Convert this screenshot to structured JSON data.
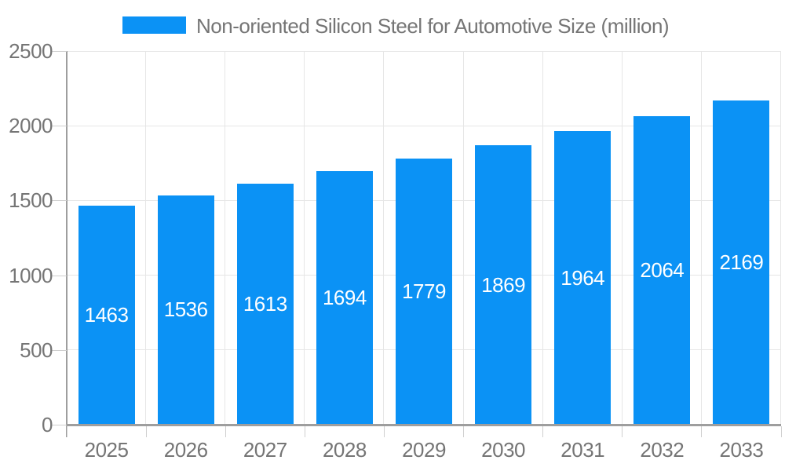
{
  "chart_data": {
    "type": "bar",
    "title": "Non-oriented Silicon Steel for Automotive Size (million)",
    "legend_position": "top",
    "categories": [
      "2025",
      "2026",
      "2027",
      "2028",
      "2029",
      "2030",
      "2031",
      "2032",
      "2033"
    ],
    "series": [
      {
        "name": "Non-oriented Silicon Steel for Automotive Size (million)",
        "values": [
          1463,
          1536,
          1613,
          1694,
          1779,
          1869,
          1964,
          2064,
          2169
        ]
      }
    ],
    "bar_value_labels": [
      "1463",
      "1536",
      "1613",
      "1694",
      "1779",
      "1869",
      "1964",
      "2064",
      "2169"
    ],
    "xlabel": "",
    "ylabel": "",
    "ylim": [
      0,
      2500
    ],
    "yticks": [
      0,
      500,
      1000,
      1500,
      2000,
      2500
    ],
    "grid": true,
    "colors": {
      "bar": "#0b92f5",
      "bar_value_text": "#ffffff",
      "axis_text": "#757575",
      "gridline": "#e6e6e6",
      "axis_line": "#9e9e9e",
      "tick_mark": "#cfcfcf",
      "background": "#ffffff"
    }
  }
}
